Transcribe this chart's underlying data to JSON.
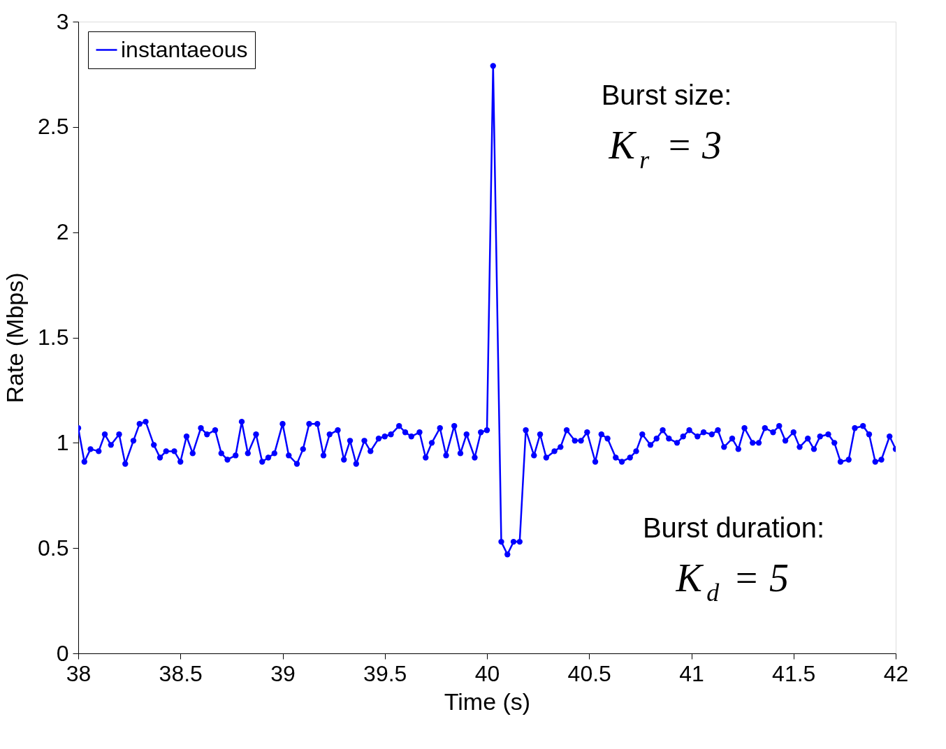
{
  "chart_data": {
    "type": "line",
    "xlabel": "Time (s)",
    "ylabel": "Rate (Mbps)",
    "xlim": [
      38,
      42
    ],
    "xticks": [
      38,
      {
        "value": 38.5,
        "label": "38.5"
      },
      39,
      {
        "value": 39.5,
        "label": "39.5"
      },
      40,
      {
        "value": 40.5,
        "label": "40.5"
      },
      41,
      {
        "value": 41.5,
        "label": "41.5"
      },
      42
    ],
    "ylim": [
      0,
      3
    ],
    "yticks": [
      0,
      0.5,
      1,
      1.5,
      2,
      2.5,
      3
    ],
    "grid": false,
    "legend": "top left",
    "marker": "circle",
    "line_style": "solid",
    "series": [
      {
        "name": "instantaeous",
        "color": "#0000ff",
        "x": [
          38.0,
          38.03,
          38.06,
          38.1,
          38.13,
          38.16,
          38.2,
          38.23,
          38.27,
          38.3,
          38.33,
          38.37,
          38.4,
          38.43,
          38.47,
          38.5,
          38.53,
          38.56,
          38.6,
          38.63,
          38.67,
          38.7,
          38.73,
          38.77,
          38.8,
          38.83,
          38.87,
          38.9,
          38.93,
          38.96,
          39.0,
          39.03,
          39.07,
          39.1,
          39.13,
          39.17,
          39.2,
          39.23,
          39.27,
          39.3,
          39.33,
          39.36,
          39.4,
          39.43,
          39.47,
          39.5,
          39.53,
          39.57,
          39.6,
          39.63,
          39.67,
          39.7,
          39.73,
          39.77,
          39.8,
          39.84,
          39.87,
          39.9,
          39.94,
          39.97,
          40.0,
          40.03,
          40.07,
          40.1,
          40.13,
          40.16,
          40.19,
          40.23,
          40.26,
          40.29,
          40.33,
          40.36,
          40.39,
          40.43,
          40.46,
          40.49,
          40.53,
          40.56,
          40.59,
          40.63,
          40.66,
          40.7,
          40.73,
          40.76,
          40.8,
          40.83,
          40.86,
          40.89,
          40.93,
          40.96,
          40.99,
          41.03,
          41.06,
          41.1,
          41.13,
          41.16,
          41.2,
          41.23,
          41.26,
          41.3,
          41.33,
          41.36,
          41.4,
          41.43,
          41.46,
          41.5,
          41.53,
          41.57,
          41.6,
          41.63,
          41.67,
          41.7,
          41.73,
          41.77,
          41.8,
          41.84,
          41.87,
          41.9,
          41.93,
          41.97,
          42.0
        ],
        "values": [
          1.07,
          0.91,
          0.97,
          0.96,
          1.04,
          0.99,
          1.04,
          0.9,
          1.01,
          1.09,
          1.1,
          0.99,
          0.93,
          0.96,
          0.96,
          0.91,
          1.03,
          0.95,
          1.07,
          1.04,
          1.06,
          0.95,
          0.92,
          0.94,
          1.1,
          0.95,
          1.04,
          0.91,
          0.93,
          0.95,
          1.09,
          0.94,
          0.9,
          0.97,
          1.09,
          1.09,
          0.94,
          1.04,
          1.06,
          0.92,
          1.01,
          0.9,
          1.01,
          0.96,
          1.02,
          1.03,
          1.04,
          1.08,
          1.05,
          1.03,
          1.05,
          0.93,
          1.0,
          1.07,
          0.94,
          1.08,
          0.95,
          1.04,
          0.93,
          1.05,
          1.06,
          2.79,
          0.53,
          0.47,
          0.53,
          0.53,
          1.06,
          0.94,
          1.04,
          0.93,
          0.96,
          0.98,
          1.06,
          1.01,
          1.01,
          1.05,
          0.91,
          1.04,
          1.02,
          0.93,
          0.91,
          0.93,
          0.96,
          1.04,
          0.99,
          1.02,
          1.06,
          1.02,
          1.0,
          1.03,
          1.06,
          1.03,
          1.05,
          1.04,
          1.06,
          0.98,
          1.02,
          0.97,
          1.07,
          1.0,
          1.0,
          1.07,
          1.05,
          1.08,
          1.01,
          1.05,
          0.98,
          1.02,
          0.97,
          1.03,
          1.04,
          1.0,
          0.91,
          0.92,
          1.07,
          1.08,
          1.04,
          0.91,
          0.92,
          1.03,
          0.97
        ]
      }
    ],
    "annotations": [
      "Burst size:\nK$_{r}$ = 3",
      "Burst duration:\nK$_{d}$ = 5"
    ]
  }
}
